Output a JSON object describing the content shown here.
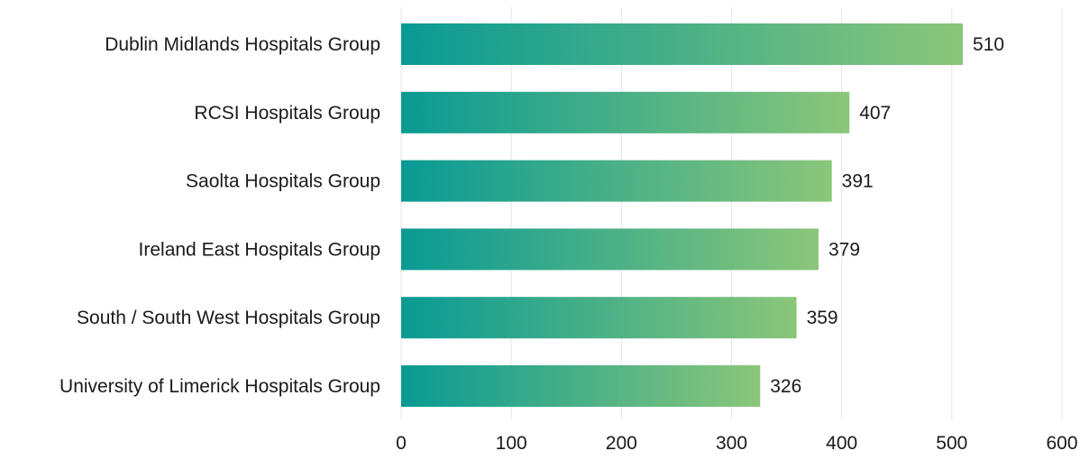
{
  "chart_data": {
    "type": "bar",
    "orientation": "horizontal",
    "categories": [
      "Dublin Midlands Hospitals Group",
      "RCSI Hospitals Group",
      "Saolta Hospitals Group",
      "Ireland East Hospitals Group",
      "South / South West Hospitals Group",
      "University of Limerick Hospitals Group"
    ],
    "values": [
      510,
      407,
      391,
      379,
      359,
      326
    ],
    "xlim": [
      0,
      600
    ],
    "xticks": [
      0,
      100,
      200,
      300,
      400,
      500,
      600
    ],
    "xtick_labels": [
      "0",
      "100",
      "200",
      "300",
      "400",
      "500",
      "600"
    ],
    "title": "",
    "xlabel": "",
    "ylabel": "",
    "grid": "vertical",
    "legend": "none",
    "data_labels": true,
    "colors": {
      "bar_gradient_start": "#089a94",
      "bar_gradient_end": "#8bc67a",
      "grid": "#e6e6e6",
      "text": "#1a1a1a"
    }
  }
}
